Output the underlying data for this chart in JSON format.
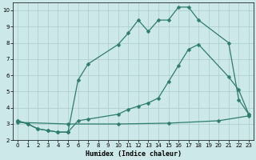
{
  "title": "",
  "xlabel": "Humidex (Indice chaleur)",
  "bg_color": "#cce8e8",
  "grid_color": "#aacccc",
  "line_color": "#2d7d6e",
  "xlim": [
    -0.5,
    23.5
  ],
  "ylim": [
    2,
    10.5
  ],
  "xticks": [
    0,
    1,
    2,
    3,
    4,
    5,
    6,
    7,
    8,
    9,
    10,
    11,
    12,
    13,
    14,
    15,
    16,
    17,
    18,
    19,
    20,
    21,
    22,
    23
  ],
  "yticks": [
    2,
    3,
    4,
    5,
    6,
    7,
    8,
    9,
    10
  ],
  "line1_x": [
    0,
    1,
    2,
    3,
    4,
    5,
    6,
    7,
    10,
    11,
    12,
    13,
    14,
    15,
    16,
    17,
    18,
    21,
    22,
    23
  ],
  "line1_y": [
    3.2,
    3.0,
    2.7,
    2.6,
    2.5,
    2.5,
    5.7,
    6.7,
    7.9,
    8.6,
    9.4,
    8.7,
    9.4,
    9.4,
    10.2,
    10.2,
    9.4,
    8.0,
    4.5,
    3.6
  ],
  "line2_x": [
    0,
    1,
    2,
    3,
    4,
    5,
    6,
    7,
    10,
    11,
    12,
    13,
    14,
    15,
    16,
    17,
    18,
    21,
    22,
    23
  ],
  "line2_y": [
    3.2,
    3.0,
    2.7,
    2.6,
    2.5,
    2.5,
    3.2,
    3.3,
    3.6,
    3.9,
    4.1,
    4.3,
    4.6,
    5.6,
    6.6,
    7.6,
    7.9,
    5.9,
    5.1,
    3.6
  ],
  "line3_x": [
    0,
    5,
    10,
    15,
    20,
    23
  ],
  "line3_y": [
    3.1,
    3.0,
    3.0,
    3.05,
    3.2,
    3.5
  ],
  "tick_fontsize": 5,
  "xlabel_fontsize": 6,
  "marker_size": 2.5,
  "linewidth": 0.9
}
